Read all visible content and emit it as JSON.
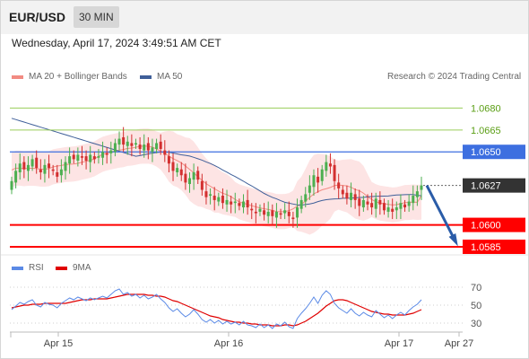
{
  "header": {
    "symbol": "EUR/USD",
    "interval": "30 MIN",
    "timestamp": "Wednesday, April 17, 2024 3:49:51 AM CET"
  },
  "legend": {
    "ma20_label": "MA 20 + Bollinger Bands",
    "ma50_label": "MA 50",
    "rsi_label": "RSI",
    "ma9_label": "9MA",
    "credit": "Research © 2024 Trading Central"
  },
  "colors": {
    "up": "#4caf50",
    "down": "#d32f2f",
    "ma20": "#f28b82",
    "band": "#fde4e4",
    "ma50": "#3f5f99",
    "support": "#ff0000",
    "target": "#9acd5a",
    "pivot": "#3d6fe0",
    "current": "#333333",
    "rsi": "#5b8ae6",
    "rsi_ma": "#e00000",
    "arrow": "#2a5ca8"
  },
  "chart_data": [
    {
      "type": "candlestick",
      "price_range": [
        1.0577,
        1.0695
      ],
      "levels": [
        {
          "value": 1.068,
          "label": "1.0680",
          "kind": "target"
        },
        {
          "value": 1.0665,
          "label": "1.0665",
          "kind": "target"
        },
        {
          "value": 1.065,
          "label": "1.0650",
          "kind": "pivot"
        },
        {
          "value": 1.0627,
          "label": "1.0627",
          "kind": "current"
        },
        {
          "value": 1.06,
          "label": "1.0600",
          "kind": "support"
        },
        {
          "value": 1.0585,
          "label": "1.0585",
          "kind": "support"
        }
      ],
      "x_ticks": [
        "Apr 15",
        "Apr 16",
        "Apr 17",
        "Apr 27"
      ],
      "closes": [
        1.063,
        1.0637,
        1.0642,
        1.0638,
        1.0641,
        1.0645,
        1.0639,
        1.0636,
        1.0641,
        1.0639,
        1.0637,
        1.0633,
        1.0638,
        1.0643,
        1.0647,
        1.0645,
        1.0648,
        1.0646,
        1.0644,
        1.0648,
        1.0645,
        1.0647,
        1.065,
        1.0648,
        1.0651,
        1.0656,
        1.0659,
        1.0655,
        1.0657,
        1.0654,
        1.0656,
        1.0652,
        1.0655,
        1.0651,
        1.0653,
        1.0656,
        1.0652,
        1.0648,
        1.0642,
        1.0637,
        1.0639,
        1.0634,
        1.0629,
        1.0632,
        1.0636,
        1.0631,
        1.0624,
        1.0619,
        1.0621,
        1.0617,
        1.0619,
        1.0615,
        1.0617,
        1.0614,
        1.0616,
        1.0613,
        1.0616,
        1.0612,
        1.061,
        1.0608,
        1.0611,
        1.0607,
        1.0609,
        1.0606,
        1.0609,
        1.0607,
        1.061,
        1.0606,
        1.0604,
        1.0612,
        1.0617,
        1.0621,
        1.0627,
        1.0634,
        1.0629,
        1.0638,
        1.0643,
        1.064,
        1.063,
        1.0625,
        1.0621,
        1.0618,
        1.0622,
        1.0617,
        1.0613,
        1.0617,
        1.0614,
        1.0612,
        1.0618,
        1.0614,
        1.061,
        1.0612,
        1.0609,
        1.0612,
        1.0615,
        1.0612,
        1.0616,
        1.062,
        1.0623,
        1.0627
      ],
      "ma20_end": 1.062,
      "ma50_start": 1.0673,
      "projection_target": 1.0585
    },
    {
      "type": "line",
      "name": "RSI",
      "ylim": [
        20,
        80
      ],
      "ticks": [
        70,
        50,
        30
      ],
      "rsi": [
        45,
        49,
        53,
        51,
        54,
        56,
        50,
        48,
        53,
        51,
        50,
        47,
        52,
        55,
        58,
        56,
        59,
        57,
        55,
        58,
        56,
        58,
        60,
        58,
        62,
        66,
        68,
        62,
        64,
        60,
        62,
        58,
        61,
        57,
        59,
        62,
        57,
        53,
        47,
        43,
        46,
        41,
        37,
        40,
        45,
        40,
        34,
        31,
        34,
        30,
        33,
        29,
        32,
        29,
        31,
        28,
        32,
        28,
        27,
        25,
        29,
        25,
        28,
        24,
        29,
        27,
        31,
        26,
        24,
        35,
        41,
        46,
        52,
        59,
        52,
        61,
        66,
        62,
        52,
        47,
        44,
        41,
        46,
        41,
        38,
        42,
        39,
        37,
        44,
        40,
        36,
        39,
        35,
        39,
        42,
        39,
        44,
        48,
        51,
        56
      ],
      "ma9": [
        47,
        48,
        49,
        50,
        50,
        51,
        51,
        51,
        52,
        52,
        52,
        52,
        52,
        52,
        53,
        54,
        55,
        56,
        56,
        56,
        57,
        57,
        57,
        57,
        58,
        59,
        60,
        61,
        62,
        62,
        62,
        62,
        62,
        61,
        61,
        60,
        60,
        59,
        57,
        55,
        54,
        52,
        50,
        48,
        46,
        44,
        42,
        40,
        38,
        37,
        36,
        34,
        33,
        32,
        31,
        31,
        30,
        30,
        29,
        29,
        28,
        28,
        28,
        27,
        27,
        27,
        28,
        28,
        27,
        28,
        30,
        32,
        35,
        38,
        41,
        45,
        49,
        52,
        55,
        56,
        56,
        55,
        53,
        51,
        49,
        47,
        45,
        43,
        42,
        41,
        40,
        40,
        39,
        39,
        39,
        39,
        40,
        41,
        43,
        45
      ]
    }
  ]
}
